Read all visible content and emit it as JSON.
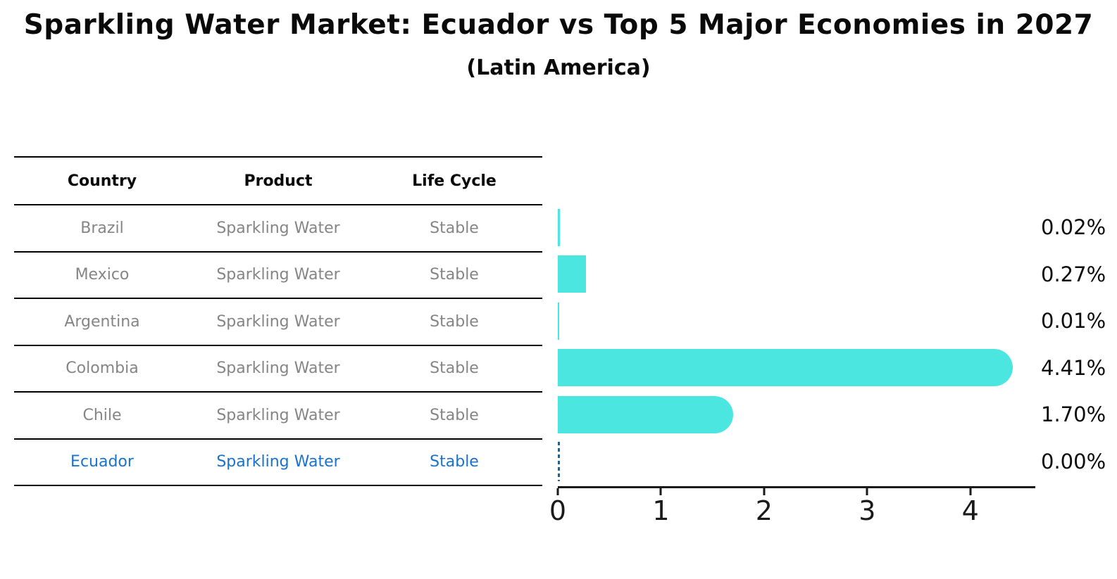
{
  "title": "Sparkling Water Market: Ecuador vs Top 5 Major Economies in 2027",
  "subtitle": "(Latin America)",
  "table": {
    "headers": [
      "Country",
      "Product",
      "Life Cycle"
    ],
    "rows": [
      {
        "country": "Brazil",
        "product": "Sparkling Water",
        "life_cycle": "Stable"
      },
      {
        "country": "Mexico",
        "product": "Sparkling Water",
        "life_cycle": "Stable"
      },
      {
        "country": "Argentina",
        "product": "Sparkling Water",
        "life_cycle": "Stable"
      },
      {
        "country": "Colombia",
        "product": "Sparkling Water",
        "life_cycle": "Stable"
      },
      {
        "country": "Chile",
        "product": "Sparkling Water",
        "life_cycle": "Stable"
      },
      {
        "country": "Ecuador",
        "product": "Sparkling Water",
        "life_cycle": "Stable"
      }
    ],
    "highlighted_row": "Ecuador"
  },
  "chart_data": {
    "type": "bar",
    "orientation": "horizontal",
    "title": "Sparkling Water Market: Ecuador vs Top 5 Major Economies in 2027",
    "subtitle": "(Latin America)",
    "categories": [
      "Brazil",
      "Mexico",
      "Argentina",
      "Colombia",
      "Chile",
      "Ecuador"
    ],
    "values": [
      0.02,
      0.27,
      0.01,
      4.41,
      1.7,
      0.0
    ],
    "value_labels": [
      "0.02%",
      "0.27%",
      "0.01%",
      "4.41%",
      "1.70%",
      "0.00%"
    ],
    "x_ticks": [
      "0",
      "1",
      "2",
      "3",
      "4"
    ],
    "xlim": [
      0,
      4.63
    ],
    "grid": false,
    "legend": "none",
    "bar_color": "#4BE6E0",
    "highlight_color": "#1873CF",
    "zero_marker_color": "#2E5F87",
    "axis_color": "#1A1A1A"
  }
}
